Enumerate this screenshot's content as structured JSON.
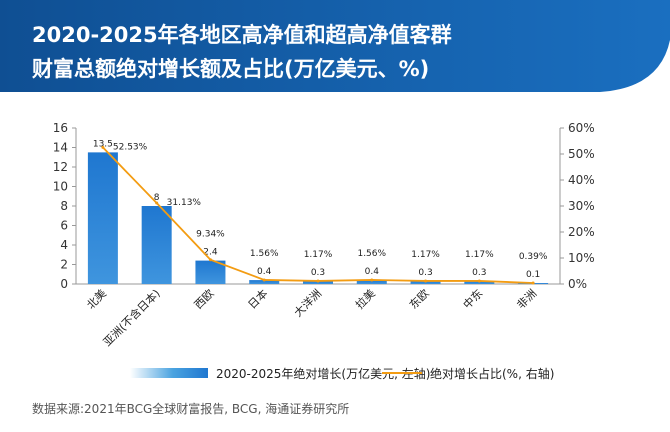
{
  "title": {
    "line1": "2020-2025年各地区高净值和超高净值客群",
    "line2": "财富总额绝对增长额及占比(万亿美元、%)"
  },
  "colors": {
    "banner": "#1760a8",
    "bar": "#1f77d0",
    "line": "#f39c12"
  },
  "chart_data": {
    "type": "bar",
    "categories": [
      "北美",
      "亚洲(不含日本)",
      "西欧",
      "日本",
      "大洋洲",
      "拉美",
      "东欧",
      "中东",
      "非洲"
    ],
    "series": [
      {
        "name": "2020-2025年绝对增长(万亿美元, 左轴)",
        "type": "bar",
        "axis": "left",
        "values": [
          13.5,
          8,
          2.4,
          0.4,
          0.3,
          0.4,
          0.3,
          0.3,
          0.1
        ],
        "labels": [
          "13.5",
          "8",
          "2.4",
          "0.4",
          "0.3",
          "0.4",
          "0.3",
          "0.3",
          "0.1"
        ]
      },
      {
        "name": "绝对增长占比(%, 右轴)",
        "type": "line",
        "axis": "right",
        "values": [
          52.53,
          31.13,
          9.34,
          1.56,
          1.17,
          1.56,
          1.17,
          1.17,
          0.39
        ],
        "labels": [
          "52.53%",
          "31.13%",
          "9.34%",
          "1.56%",
          "1.17%",
          "1.56%",
          "1.17%",
          "1.17%",
          "0.39%"
        ]
      }
    ],
    "y_left": {
      "min": 0,
      "max": 16,
      "ticks": [
        "0",
        "2",
        "4",
        "6",
        "8",
        "10",
        "12",
        "14",
        "16"
      ]
    },
    "y_right": {
      "min": 0,
      "max": 60,
      "ticks": [
        "0%",
        "10%",
        "20%",
        "30%",
        "40%",
        "50%",
        "60%"
      ]
    },
    "grid": false,
    "legend_position": "bottom"
  },
  "legend": {
    "bar_label": "2020-2025年绝对增长(万亿美元, 左轴)",
    "line_label": "绝对增长占比(%, 右轴)"
  },
  "source": "数据来源:2021年BCG全球财富报告, BCG, 海通证券研究所"
}
